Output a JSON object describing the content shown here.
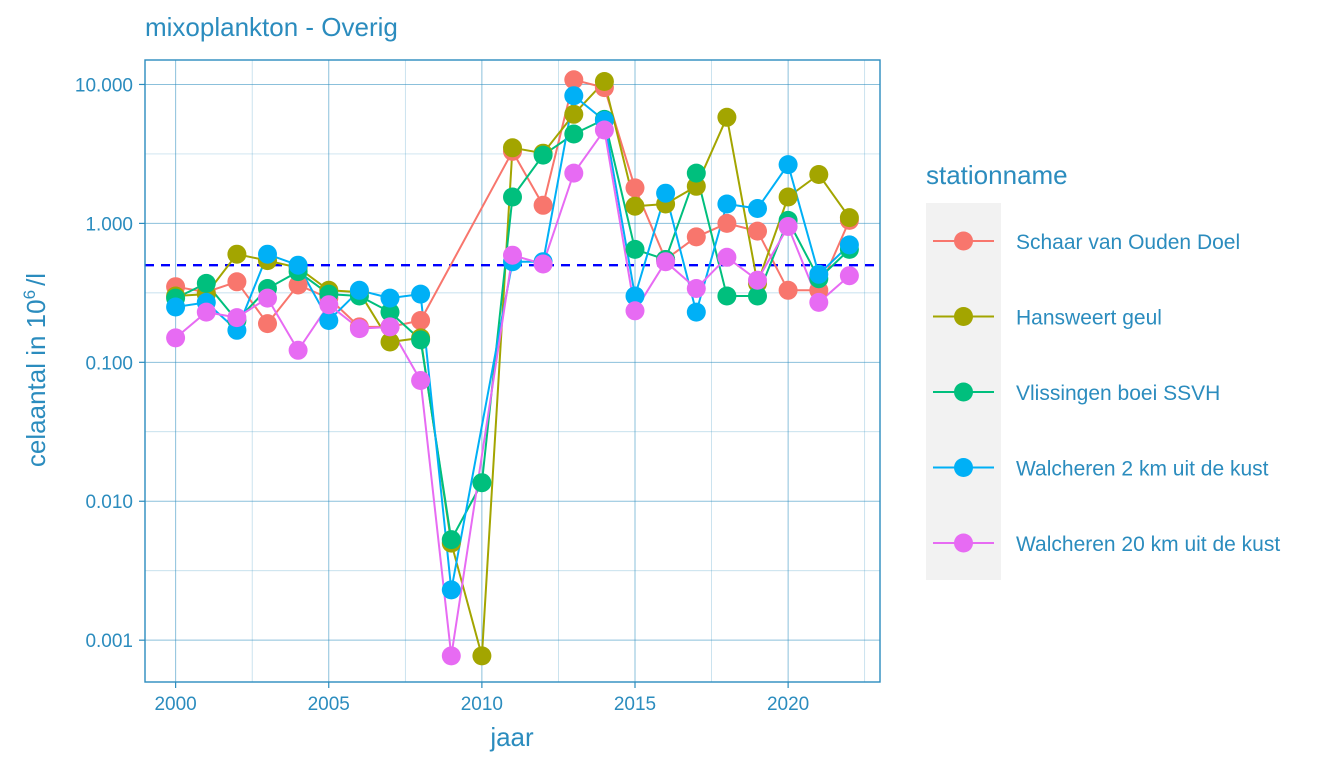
{
  "chart_data": {
    "type": "line",
    "title": "mixoplankton - Overig",
    "xlabel": "jaar",
    "ylabel_prefix": "celaantal in  10",
    "ylabel_sup": "6",
    "ylabel_suffix": "/l",
    "y_scale": "log10",
    "xlim": [
      1999,
      2023
    ],
    "ylim": [
      0.0005,
      15.0
    ],
    "x_ticks": [
      2000,
      2005,
      2010,
      2015,
      2020
    ],
    "x_tick_labels": [
      "2000",
      "2005",
      "2010",
      "2015",
      "2020"
    ],
    "y_ticks": [
      0.001,
      0.01,
      0.1,
      1,
      10
    ],
    "y_tick_labels": [
      "0.001",
      "0.010",
      "0.100",
      "1.000",
      "10.000"
    ],
    "reference_line": {
      "y": 0.5,
      "style": "dashed",
      "color": "#0000ff"
    },
    "grid": true,
    "legend": {
      "title": "stationname",
      "placement": "right",
      "entries": [
        "Schaar van Ouden Doel",
        "Hansweert geul",
        "Vlissingen boei SSVH",
        "Walcheren 2 km uit de kust",
        "Walcheren 20 km uit de kust"
      ]
    },
    "series": [
      {
        "name": "Schaar van Ouden Doel",
        "color": "#f8766d",
        "points": [
          [
            2000,
            0.35
          ],
          [
            2001,
            0.32
          ],
          [
            2002,
            0.38
          ],
          [
            2003,
            0.19
          ],
          [
            2004,
            0.36
          ],
          [
            2005,
            0.29
          ],
          [
            2006,
            0.18
          ],
          [
            2007,
            0.18
          ],
          [
            2008,
            0.2
          ],
          [
            2011,
            3.3
          ],
          [
            2012,
            1.35
          ],
          [
            2013,
            10.8
          ],
          [
            2014,
            9.5
          ],
          [
            2015,
            1.8
          ],
          [
            2016,
            0.55
          ],
          [
            2017,
            0.8
          ],
          [
            2018,
            1.0
          ],
          [
            2019,
            0.88
          ],
          [
            2020,
            0.33
          ],
          [
            2021,
            0.33
          ],
          [
            2022,
            1.05
          ]
        ]
      },
      {
        "name": "Hansweert geul",
        "color": "#a3a500",
        "points": [
          [
            2000,
            0.3
          ],
          [
            2001,
            0.31
          ],
          [
            2002,
            0.6
          ],
          [
            2003,
            0.54
          ],
          [
            2004,
            0.48
          ],
          [
            2005,
            0.33
          ],
          [
            2006,
            0.32
          ],
          [
            2007,
            0.14
          ],
          [
            2008,
            0.15
          ],
          [
            2009,
            0.005
          ],
          [
            2010,
            0.00077
          ],
          [
            2011,
            3.5
          ],
          [
            2012,
            3.2
          ],
          [
            2013,
            6.1
          ],
          [
            2014,
            10.5
          ],
          [
            2015,
            1.33
          ],
          [
            2016,
            1.38
          ],
          [
            2017,
            1.85
          ],
          [
            2018,
            5.8
          ],
          [
            2019,
            0.37
          ],
          [
            2020,
            1.55
          ],
          [
            2021,
            2.25
          ],
          [
            2022,
            1.1
          ]
        ]
      },
      {
        "name": "Vlissingen boei SSVH",
        "color": "#00bf7d",
        "points": [
          [
            2000,
            0.29
          ],
          [
            2001,
            0.37
          ],
          [
            2002,
            0.2
          ],
          [
            2003,
            0.34
          ],
          [
            2004,
            0.45
          ],
          [
            2005,
            0.31
          ],
          [
            2006,
            0.3
          ],
          [
            2007,
            0.23
          ],
          [
            2008,
            0.145
          ],
          [
            2009,
            0.0053
          ],
          [
            2010,
            0.0136
          ],
          [
            2011,
            1.55
          ],
          [
            2012,
            3.1
          ],
          [
            2013,
            4.4
          ],
          [
            2014,
            5.6
          ],
          [
            2015,
            0.65
          ],
          [
            2016,
            0.55
          ],
          [
            2017,
            2.3
          ],
          [
            2018,
            0.3
          ],
          [
            2019,
            0.3
          ],
          [
            2020,
            1.05
          ],
          [
            2021,
            0.4
          ],
          [
            2022,
            0.65
          ]
        ]
      },
      {
        "name": "Walcheren 2 km uit de kust",
        "color": "#00b0f6",
        "points": [
          [
            2000,
            0.25
          ],
          [
            2001,
            0.27
          ],
          [
            2002,
            0.17
          ],
          [
            2003,
            0.6
          ],
          [
            2004,
            0.5
          ],
          [
            2005,
            0.2
          ],
          [
            2006,
            0.33
          ],
          [
            2007,
            0.29
          ],
          [
            2008,
            0.31
          ],
          [
            2009,
            0.0023
          ],
          [
            2011,
            0.53
          ],
          [
            2012,
            0.53
          ],
          [
            2013,
            8.3
          ],
          [
            2014,
            5.5
          ],
          [
            2015,
            0.3
          ],
          [
            2016,
            1.65
          ],
          [
            2017,
            0.23
          ],
          [
            2018,
            1.38
          ],
          [
            2019,
            1.28
          ],
          [
            2020,
            2.65
          ],
          [
            2021,
            0.43
          ],
          [
            2022,
            0.7
          ]
        ]
      },
      {
        "name": "Walcheren 20 km uit de kust",
        "color": "#e76bf3",
        "points": [
          [
            2000,
            0.15
          ],
          [
            2001,
            0.23
          ],
          [
            2002,
            0.21
          ],
          [
            2003,
            0.29
          ],
          [
            2004,
            0.122
          ],
          [
            2005,
            0.26
          ],
          [
            2006,
            0.175
          ],
          [
            2007,
            0.18
          ],
          [
            2008,
            0.074
          ],
          [
            2009,
            0.00077
          ],
          [
            2011,
            0.59
          ],
          [
            2012,
            0.51
          ],
          [
            2013,
            2.3
          ],
          [
            2014,
            4.7
          ],
          [
            2015,
            0.235
          ],
          [
            2016,
            0.53
          ],
          [
            2017,
            0.34
          ],
          [
            2018,
            0.57
          ],
          [
            2019,
            0.39
          ],
          [
            2020,
            0.95
          ],
          [
            2021,
            0.27
          ],
          [
            2022,
            0.42
          ]
        ]
      }
    ]
  }
}
